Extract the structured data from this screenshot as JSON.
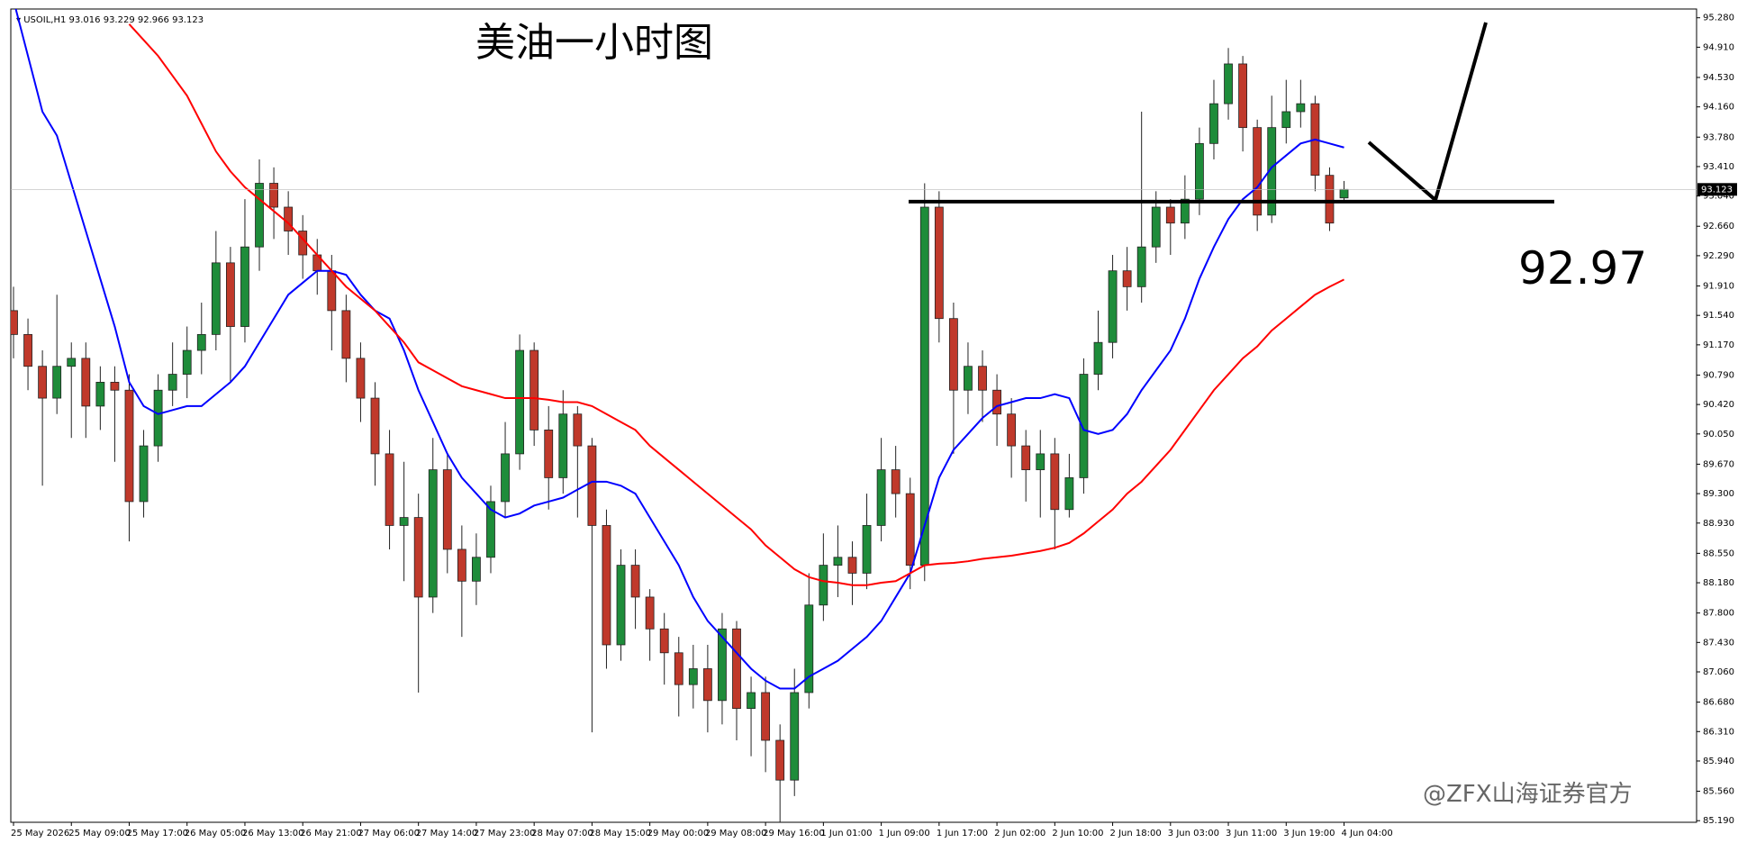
{
  "chart_data": {
    "type": "candlestick",
    "symbol": "USOIL,H1",
    "title": "美油一小时图",
    "level": 92.97,
    "watermark": "@ZFX山海证券官方",
    "up_color": "#1e8c3a",
    "down_color": "#c0392b",
    "categories": [
      "25 May 2026",
      null,
      null,
      null,
      "25 May 09:00",
      null,
      null,
      null,
      "25 May 17:00",
      null,
      null,
      null,
      "26 May 05:00",
      null,
      null,
      null,
      "26 May 13:00",
      null,
      null,
      null,
      "26 May 21:00",
      null,
      null,
      null,
      "27 May 06:00",
      null,
      null,
      null,
      "27 May 14:00",
      null,
      null,
      null,
      "27 May 23:00",
      null,
      null,
      null,
      "28 May 07:00",
      null,
      null,
      null,
      "28 May 15:00",
      null,
      null,
      null,
      "29 May 00:00",
      null,
      null,
      null,
      "29 May 08:00",
      null,
      null,
      null,
      "29 May 16:00",
      null,
      null,
      null,
      "1 Jun 01:00",
      null,
      null,
      null,
      "1 Jun 09:00",
      null,
      null,
      null,
      "1 Jun 17:00",
      null,
      null,
      null,
      "2 Jun 02:00",
      null,
      null,
      null,
      "2 Jun 10:00",
      null,
      null,
      null,
      "2 Jun 18:00",
      null,
      null,
      null,
      "3 Jun 03:00",
      null,
      null,
      null,
      "3 Jun 11:00",
      null,
      null,
      null,
      "3 Jun 19:00",
      null,
      null,
      null,
      "4 Jun 04:00"
    ],
    "open": [
      91.6,
      91.3,
      90.9,
      90.5,
      90.9,
      91.0,
      90.4,
      90.7,
      90.6,
      89.2,
      89.9,
      90.6,
      90.8,
      91.1,
      91.3,
      92.2,
      91.4,
      92.4,
      93.2,
      92.9,
      92.6,
      92.3,
      92.1,
      91.6,
      91.0,
      90.5,
      89.8,
      88.9,
      89.0,
      88.0,
      89.6,
      88.6,
      88.2,
      88.5,
      89.2,
      89.8,
      91.1,
      90.1,
      89.5,
      90.3,
      89.9,
      88.9,
      87.4,
      88.4,
      88.0,
      87.6,
      87.3,
      86.9,
      87.1,
      86.7,
      87.6,
      86.6,
      86.8,
      86.2,
      85.7,
      86.8,
      87.9,
      88.4,
      88.5,
      88.3,
      88.9,
      89.6,
      89.3,
      88.4,
      92.9,
      91.5,
      90.6,
      90.9,
      90.6,
      90.3,
      89.9,
      89.6,
      89.8,
      89.1,
      89.5,
      90.8,
      91.2,
      92.1,
      91.9,
      92.4,
      92.9,
      92.7,
      93.0,
      93.7,
      94.2,
      94.7,
      93.9,
      92.8,
      93.9,
      94.1,
      94.2,
      93.3,
      93.016
    ],
    "high": [
      91.9,
      91.5,
      91.1,
      91.8,
      91.2,
      91.2,
      90.9,
      90.9,
      90.8,
      90.1,
      90.8,
      91.2,
      91.4,
      91.7,
      92.6,
      92.4,
      93.0,
      93.5,
      93.4,
      93.1,
      92.8,
      92.5,
      92.3,
      91.8,
      91.2,
      90.7,
      90.1,
      89.7,
      89.3,
      90.0,
      89.8,
      88.9,
      88.8,
      89.4,
      90.2,
      91.3,
      91.2,
      90.4,
      90.6,
      90.4,
      90.0,
      89.1,
      88.6,
      88.6,
      88.1,
      87.8,
      87.5,
      87.4,
      87.4,
      87.8,
      87.7,
      87.0,
      87.0,
      86.4,
      87.1,
      88.3,
      88.8,
      88.9,
      88.7,
      89.3,
      90.0,
      89.9,
      89.5,
      93.2,
      93.1,
      91.7,
      91.2,
      91.1,
      90.8,
      90.5,
      90.1,
      90.1,
      90.0,
      89.8,
      91.0,
      91.6,
      92.3,
      92.4,
      94.1,
      93.1,
      93.0,
      93.3,
      93.9,
      94.5,
      94.9,
      94.8,
      94.0,
      94.3,
      94.5,
      94.5,
      94.3,
      93.4,
      93.229
    ],
    "low": [
      91.0,
      90.6,
      89.4,
      90.3,
      90.0,
      90.0,
      90.1,
      89.7,
      88.7,
      89.0,
      89.7,
      90.4,
      90.5,
      90.8,
      91.1,
      90.7,
      91.2,
      92.1,
      92.5,
      92.3,
      92.0,
      91.8,
      91.1,
      90.7,
      90.2,
      89.4,
      88.6,
      88.2,
      86.8,
      87.8,
      88.3,
      87.5,
      87.9,
      88.3,
      89.0,
      89.6,
      89.9,
      89.1,
      89.3,
      89.0,
      86.3,
      87.1,
      87.2,
      87.6,
      87.2,
      86.9,
      86.5,
      86.6,
      86.3,
      86.4,
      86.2,
      86.0,
      85.8,
      85.1,
      85.5,
      86.6,
      87.7,
      88.0,
      87.9,
      88.1,
      88.7,
      89.0,
      88.1,
      88.2,
      91.2,
      89.8,
      90.3,
      90.2,
      89.9,
      89.5,
      89.2,
      89.0,
      88.6,
      89.0,
      89.3,
      90.6,
      91.0,
      91.6,
      91.7,
      92.2,
      92.3,
      92.5,
      92.8,
      93.5,
      94.0,
      93.6,
      92.6,
      92.7,
      93.7,
      93.9,
      93.1,
      92.6,
      92.966
    ],
    "close": [
      91.3,
      90.9,
      90.5,
      90.9,
      91.0,
      90.4,
      90.7,
      90.6,
      89.2,
      89.9,
      90.6,
      90.8,
      91.1,
      91.3,
      92.2,
      91.4,
      92.4,
      93.2,
      92.9,
      92.6,
      92.3,
      92.1,
      91.6,
      91.0,
      90.5,
      89.8,
      88.9,
      89.0,
      88.0,
      89.6,
      88.6,
      88.2,
      88.5,
      89.2,
      89.8,
      91.1,
      90.1,
      89.5,
      90.3,
      89.9,
      88.9,
      87.4,
      88.4,
      88.0,
      87.6,
      87.3,
      86.9,
      87.1,
      86.7,
      87.6,
      86.6,
      86.8,
      86.2,
      85.7,
      86.8,
      87.9,
      88.4,
      88.5,
      88.3,
      88.9,
      89.6,
      89.3,
      88.4,
      92.9,
      91.5,
      90.6,
      90.9,
      90.6,
      90.3,
      89.9,
      89.6,
      89.8,
      89.1,
      89.5,
      90.8,
      91.2,
      92.1,
      91.9,
      92.4,
      92.9,
      92.7,
      93.0,
      93.7,
      94.2,
      94.7,
      93.9,
      92.8,
      93.9,
      94.1,
      94.2,
      93.3,
      92.7,
      93.123
    ],
    "series": [
      {
        "color": "#0000ff",
        "values": [
          95.5,
          94.8,
          94.1,
          93.8,
          93.2,
          92.6,
          92.0,
          91.4,
          90.7,
          90.4,
          90.3,
          90.35,
          90.4,
          90.4,
          90.55,
          90.7,
          90.9,
          91.2,
          91.5,
          91.8,
          91.95,
          92.1,
          92.1,
          92.05,
          91.8,
          91.6,
          91.5,
          91.1,
          90.6,
          90.2,
          89.8,
          89.5,
          89.3,
          89.1,
          89.0,
          89.05,
          89.15,
          89.2,
          89.25,
          89.35,
          89.45,
          89.45,
          89.4,
          89.3,
          89.0,
          88.7,
          88.4,
          88.0,
          87.7,
          87.5,
          87.3,
          87.1,
          86.95,
          86.85,
          86.85,
          87.0,
          87.1,
          87.2,
          87.35,
          87.5,
          87.7,
          88.0,
          88.3,
          88.9,
          89.5,
          89.85,
          90.05,
          90.25,
          90.4,
          90.45,
          90.5,
          90.5,
          90.55,
          90.5,
          90.1,
          90.05,
          90.1,
          90.3,
          90.6,
          90.85,
          91.1,
          91.5,
          92.0,
          92.4,
          92.75,
          93.0,
          93.15,
          93.4,
          93.55,
          93.7,
          93.75,
          93.7,
          93.65
        ]
      },
      {
        "color": "#ff0000",
        "values": [
          null,
          null,
          null,
          null,
          null,
          null,
          null,
          null,
          95.2,
          95.0,
          94.8,
          94.55,
          94.3,
          93.95,
          93.6,
          93.35,
          93.15,
          93.0,
          92.85,
          92.7,
          92.5,
          92.3,
          92.1,
          91.9,
          91.75,
          91.6,
          91.4,
          91.2,
          90.95,
          90.85,
          90.75,
          90.65,
          90.6,
          90.55,
          90.5,
          90.5,
          90.5,
          90.48,
          90.45,
          90.45,
          90.4,
          90.3,
          90.2,
          90.1,
          89.9,
          89.75,
          89.6,
          89.45,
          89.3,
          89.15,
          89.0,
          88.85,
          88.65,
          88.5,
          88.35,
          88.25,
          88.2,
          88.18,
          88.15,
          88.15,
          88.18,
          88.2,
          88.3,
          88.4,
          88.42,
          88.43,
          88.45,
          88.48,
          88.5,
          88.52,
          88.55,
          88.58,
          88.62,
          88.68,
          88.8,
          88.95,
          89.1,
          89.3,
          89.45,
          89.65,
          89.85,
          90.1,
          90.35,
          90.6,
          90.8,
          91.0,
          91.15,
          91.35,
          91.5,
          91.65,
          91.8,
          91.9,
          91.99
        ]
      }
    ],
    "ylim": [
      85.17,
      95.39
    ],
    "yticks": [
      {
        "value": 95.28,
        "label": "95.280"
      },
      {
        "value": 94.91,
        "label": "94.910"
      },
      {
        "value": 94.53,
        "label": "94.530"
      },
      {
        "value": 94.16,
        "label": "94.160"
      },
      {
        "value": 93.78,
        "label": "93.780"
      },
      {
        "value": 93.41,
        "label": "93.410"
      },
      {
        "value": 93.04,
        "label": "93.040"
      },
      {
        "value": 92.66,
        "label": "92.660"
      },
      {
        "value": 92.29,
        "label": "92.290"
      },
      {
        "value": 91.91,
        "label": "91.910"
      },
      {
        "value": 91.54,
        "label": "91.540"
      },
      {
        "value": 91.17,
        "label": "91.170"
      },
      {
        "value": 90.79,
        "label": "90.790"
      },
      {
        "value": 90.42,
        "label": "90.420"
      },
      {
        "value": 90.05,
        "label": "90.050"
      },
      {
        "value": 89.67,
        "label": "89.670"
      },
      {
        "value": 89.3,
        "label": "89.300"
      },
      {
        "value": 88.93,
        "label": "88.930"
      },
      {
        "value": 88.55,
        "label": "88.550"
      },
      {
        "value": 88.18,
        "label": "88.180"
      },
      {
        "value": 87.8,
        "label": "87.800"
      },
      {
        "value": 87.43,
        "label": "87.430"
      },
      {
        "value": 87.06,
        "label": "87.060"
      },
      {
        "value": 86.68,
        "label": "86.680"
      },
      {
        "value": 86.31,
        "label": "86.310"
      },
      {
        "value": 85.94,
        "label": "85.940"
      },
      {
        "value": 85.56,
        "label": "85.560"
      },
      {
        "value": 85.19,
        "label": "85.190"
      }
    ],
    "grid": false
  }
}
